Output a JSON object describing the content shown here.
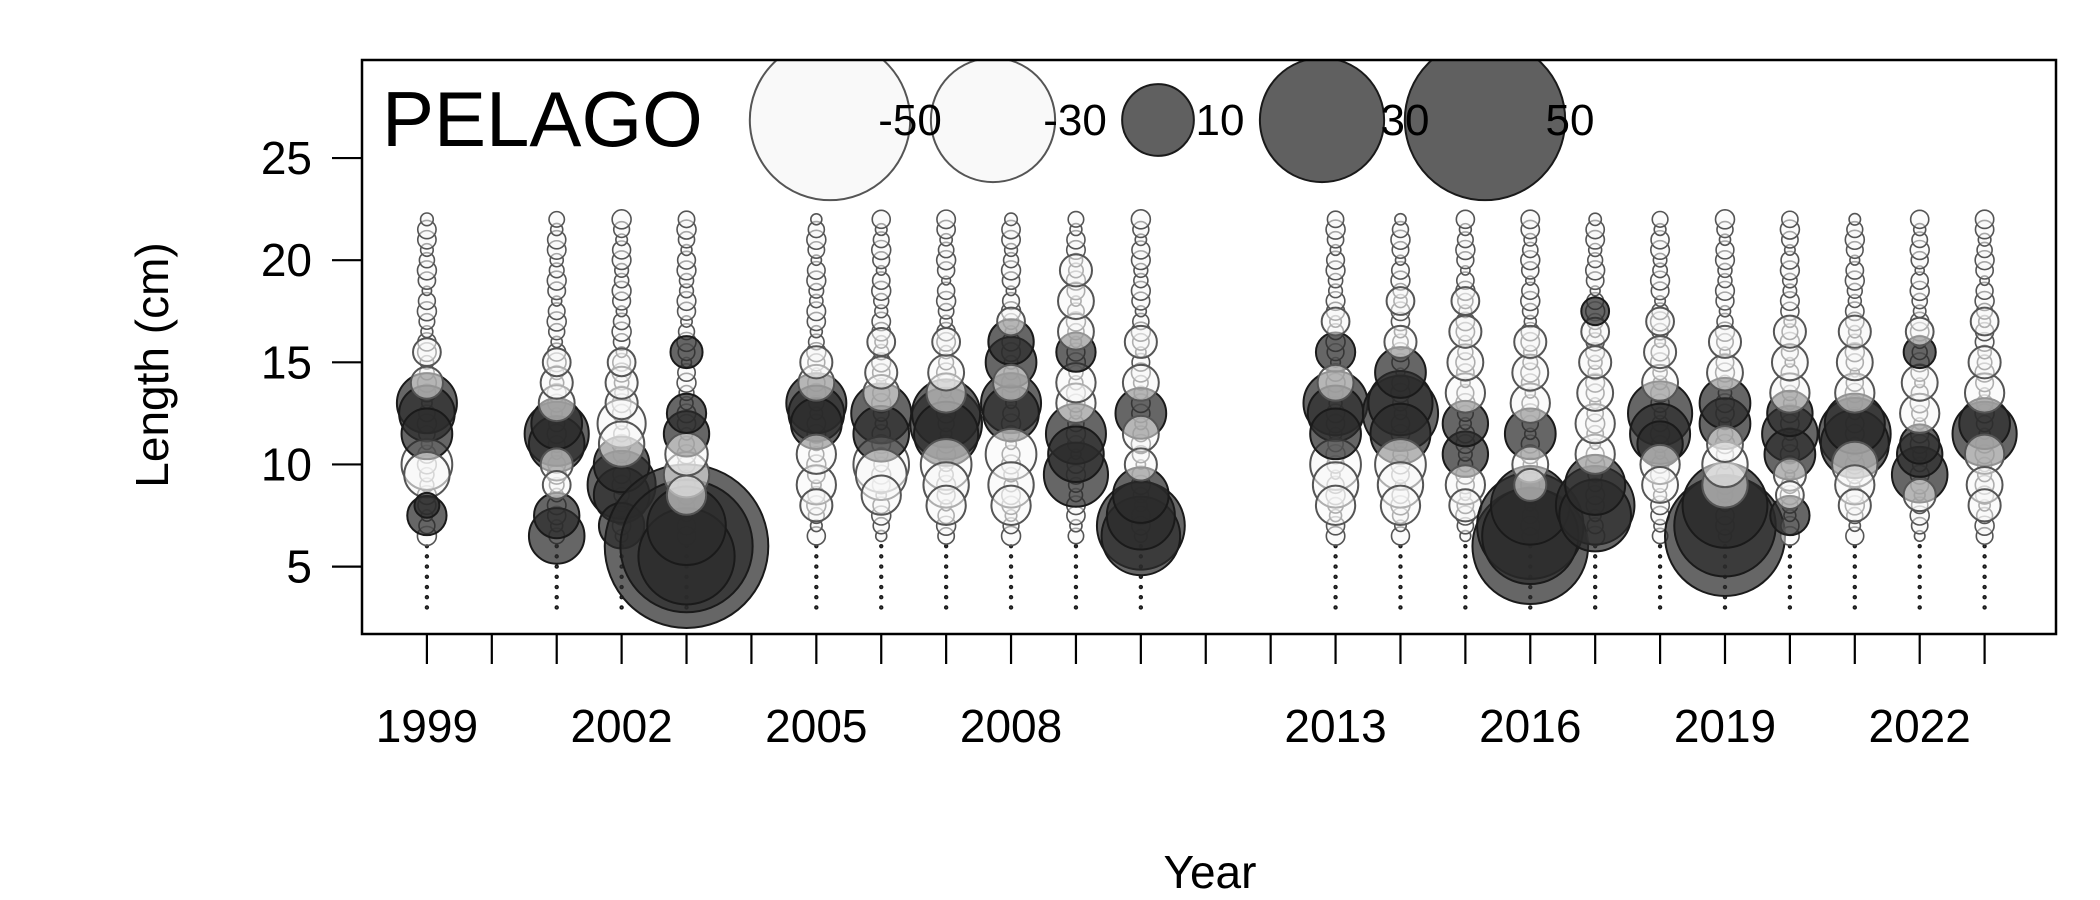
{
  "chart_data": {
    "type": "scatter",
    "subtype": "bubble",
    "title": "PELAGO",
    "xlabel": "Year",
    "ylabel": "Length (cm)",
    "xlim": [
      1998.0,
      2024.1
    ],
    "ylim": [
      1.7,
      29.8
    ],
    "x_ticks": [
      1999,
      2000,
      2001,
      2002,
      2003,
      2004,
      2005,
      2006,
      2007,
      2008,
      2009,
      2010,
      2011,
      2012,
      2013,
      2014,
      2015,
      2016,
      2017,
      2018,
      2019,
      2020,
      2021,
      2022,
      2023
    ],
    "x_tick_labels": [
      {
        "value": 1999,
        "label": "1999"
      },
      {
        "value": 2002,
        "label": "2002"
      },
      {
        "value": 2005,
        "label": "2005"
      },
      {
        "value": 2008,
        "label": "2008"
      },
      {
        "value": 2013,
        "label": "2013"
      },
      {
        "value": 2016,
        "label": "2016"
      },
      {
        "value": 2019,
        "label": "2019"
      },
      {
        "value": 2022,
        "label": "2022"
      }
    ],
    "y_ticks": [
      {
        "value": 5,
        "label": "5"
      },
      {
        "value": 10,
        "label": "10"
      },
      {
        "value": 15,
        "label": "15"
      },
      {
        "value": 20,
        "label": "20"
      },
      {
        "value": 25,
        "label": "25"
      }
    ],
    "legend": {
      "placement": "top-center",
      "entries": [
        {
          "value": -50,
          "label": "-50"
        },
        {
          "value": -30,
          "label": "-30"
        },
        {
          "value": 10,
          "label": "10"
        },
        {
          "value": 30,
          "label": "30"
        },
        {
          "value": 50,
          "label": "50"
        }
      ]
    },
    "colors": {
      "negative_fill": "#f7f7f7",
      "negative_stroke": "#555555",
      "positive_fill": "#2b2b2b",
      "positive_stroke": "#1a1a1a",
      "plot_frame": "#000000"
    },
    "years": [
      {
        "year": 1999,
        "residuals": [
          [
            7.5,
            3
          ],
          [
            8,
            1.2
          ],
          [
            9.5,
            -4
          ],
          [
            10,
            -5
          ],
          [
            11.5,
            5
          ],
          [
            12.5,
            6
          ],
          [
            13,
            7
          ],
          [
            14,
            -2
          ],
          [
            15.5,
            -1.5
          ]
        ]
      },
      {
        "year": 2001,
        "residuals": [
          [
            6.5,
            6
          ],
          [
            7.5,
            4
          ],
          [
            9,
            -1.5
          ],
          [
            10,
            -2
          ],
          [
            11,
            6
          ],
          [
            11.5,
            8
          ],
          [
            12,
            5
          ],
          [
            13,
            -2.5
          ],
          [
            14,
            -2
          ],
          [
            15,
            -1.5
          ]
        ]
      },
      {
        "year": 2002,
        "residuals": [
          [
            7,
            4
          ],
          [
            8.5,
            6
          ],
          [
            9,
            9
          ],
          [
            10,
            6
          ],
          [
            11,
            -4
          ],
          [
            12,
            -4.5
          ],
          [
            13,
            -2
          ],
          [
            14,
            -2
          ],
          [
            15,
            -1.5
          ]
        ]
      },
      {
        "year": 2003,
        "residuals": [
          [
            6,
            52
          ],
          [
            6,
            34
          ],
          [
            5.5,
            18
          ],
          [
            7,
            12
          ],
          [
            8.5,
            -3
          ],
          [
            9.5,
            -4
          ],
          [
            10.5,
            -3.5
          ],
          [
            11.5,
            4
          ],
          [
            12.5,
            3
          ],
          [
            15.5,
            2
          ]
        ]
      },
      {
        "year": 2005,
        "residuals": [
          [
            8,
            -2
          ],
          [
            9,
            -3
          ],
          [
            10.5,
            -3
          ],
          [
            12,
            5
          ],
          [
            12.5,
            6
          ],
          [
            13,
            7
          ],
          [
            14,
            -2.5
          ],
          [
            15,
            -2
          ]
        ]
      },
      {
        "year": 2006,
        "residuals": [
          [
            8.5,
            -3
          ],
          [
            9.5,
            -5
          ],
          [
            10,
            -6
          ],
          [
            11.5,
            6
          ],
          [
            12.5,
            7
          ],
          [
            13.5,
            -2.5
          ],
          [
            14.5,
            -2
          ],
          [
            16,
            -1.5
          ]
        ]
      },
      {
        "year": 2007,
        "residuals": [
          [
            8,
            -3
          ],
          [
            9,
            -4
          ],
          [
            10,
            -5
          ],
          [
            11.5,
            8
          ],
          [
            12,
            10
          ],
          [
            12.5,
            9
          ],
          [
            13.5,
            -3
          ],
          [
            14.5,
            -2.5
          ],
          [
            16,
            -1.5
          ]
        ]
      },
      {
        "year": 2008,
        "residuals": [
          [
            8,
            -3
          ],
          [
            9,
            -4
          ],
          [
            10.5,
            -5
          ],
          [
            12.5,
            6
          ],
          [
            13,
            7
          ],
          [
            15,
            5
          ],
          [
            16,
            4
          ],
          [
            14,
            -2.5
          ],
          [
            17,
            -1.5
          ]
        ]
      },
      {
        "year": 2009,
        "residuals": [
          [
            9.5,
            8
          ],
          [
            10.5,
            6
          ],
          [
            11.5,
            7
          ],
          [
            13,
            -3
          ],
          [
            14,
            -3
          ],
          [
            15.5,
            3
          ],
          [
            16.5,
            -2.5
          ],
          [
            18,
            -2.5
          ],
          [
            19.5,
            -2
          ]
        ]
      },
      {
        "year": 2010,
        "residuals": [
          [
            7,
            15
          ],
          [
            6.5,
            12
          ],
          [
            7.5,
            9
          ],
          [
            8.5,
            6
          ],
          [
            10,
            -2
          ],
          [
            11.5,
            -2.5
          ],
          [
            12.5,
            5
          ],
          [
            14,
            -2.5
          ],
          [
            16,
            -2
          ]
        ]
      },
      {
        "year": 2013,
        "residuals": [
          [
            8,
            -3
          ],
          [
            9,
            -4
          ],
          [
            10,
            -5
          ],
          [
            11.5,
            5
          ],
          [
            12.5,
            6
          ],
          [
            13,
            8
          ],
          [
            14,
            -2.5
          ],
          [
            15.5,
            3
          ],
          [
            17,
            -1.5
          ]
        ]
      },
      {
        "year": 2014,
        "residuals": [
          [
            8,
            -3
          ],
          [
            9,
            -4
          ],
          [
            10,
            -5
          ],
          [
            11.5,
            7
          ],
          [
            12.5,
            11
          ],
          [
            13,
            8
          ],
          [
            14.5,
            5
          ],
          [
            16,
            -2
          ],
          [
            18,
            -1.5
          ]
        ]
      },
      {
        "year": 2015,
        "residuals": [
          [
            8,
            -2
          ],
          [
            9,
            -3
          ],
          [
            10.5,
            4
          ],
          [
            12,
            4
          ],
          [
            13.5,
            -3
          ],
          [
            15,
            -2.5
          ],
          [
            16.5,
            -2
          ],
          [
            18,
            -1.5
          ]
        ]
      },
      {
        "year": 2016,
        "residuals": [
          [
            6,
            26
          ],
          [
            6.5,
            18
          ],
          [
            7,
            22
          ],
          [
            8,
            12
          ],
          [
            9,
            -2
          ],
          [
            10,
            -2.5
          ],
          [
            11.5,
            5
          ],
          [
            13,
            -3
          ],
          [
            14.5,
            -2.5
          ],
          [
            16,
            -2
          ]
        ]
      },
      {
        "year": 2017,
        "residuals": [
          [
            7.5,
            10
          ],
          [
            8,
            12
          ],
          [
            9,
            7
          ],
          [
            10.5,
            -3
          ],
          [
            12,
            -3
          ],
          [
            13.5,
            -2.5
          ],
          [
            15,
            -2
          ],
          [
            16.5,
            -1.5
          ],
          [
            17.5,
            1.5
          ]
        ]
      },
      {
        "year": 2018,
        "residuals": [
          [
            9,
            -2.5
          ],
          [
            10,
            -3
          ],
          [
            11,
            4
          ],
          [
            11.5,
            7
          ],
          [
            12.5,
            8
          ],
          [
            14,
            -2.5
          ],
          [
            15.5,
            -2
          ],
          [
            17,
            -1.5
          ]
        ]
      },
      {
        "year": 2019,
        "residuals": [
          [
            6.5,
            28
          ],
          [
            7,
            20
          ],
          [
            8,
            14
          ],
          [
            9,
            -4
          ],
          [
            10,
            -4
          ],
          [
            11,
            -2.5
          ],
          [
            12,
            5
          ],
          [
            13,
            5
          ],
          [
            14.5,
            -2.5
          ],
          [
            16,
            -2
          ]
        ]
      },
      {
        "year": 2020,
        "residuals": [
          [
            7.5,
            3
          ],
          [
            8.5,
            -1.5
          ],
          [
            9.5,
            -2
          ],
          [
            10.5,
            5
          ],
          [
            11.5,
            6
          ],
          [
            12.5,
            4
          ],
          [
            13.5,
            -3
          ],
          [
            15,
            -2.5
          ],
          [
            16.5,
            -2
          ]
        ]
      },
      {
        "year": 2021,
        "residuals": [
          [
            8,
            -2
          ],
          [
            9,
            -3
          ],
          [
            10,
            -4
          ],
          [
            11,
            9
          ],
          [
            11.5,
            10
          ],
          [
            12,
            7
          ],
          [
            13.5,
            -3
          ],
          [
            15,
            -2.5
          ],
          [
            16.5,
            -2
          ]
        ]
      },
      {
        "year": 2022,
        "residuals": [
          [
            8.5,
            -2
          ],
          [
            9.5,
            6
          ],
          [
            10.5,
            4
          ],
          [
            11,
            3
          ],
          [
            12.5,
            -3
          ],
          [
            14,
            -2.5
          ],
          [
            15.5,
            2
          ],
          [
            16.5,
            -1.5
          ]
        ]
      },
      {
        "year": 2023,
        "residuals": [
          [
            8,
            -2
          ],
          [
            9,
            -2.5
          ],
          [
            10.5,
            -3
          ],
          [
            11.5,
            8
          ],
          [
            12,
            5
          ],
          [
            13.5,
            -3
          ],
          [
            15,
            -2
          ],
          [
            17,
            -1.5
          ]
        ]
      }
    ]
  }
}
